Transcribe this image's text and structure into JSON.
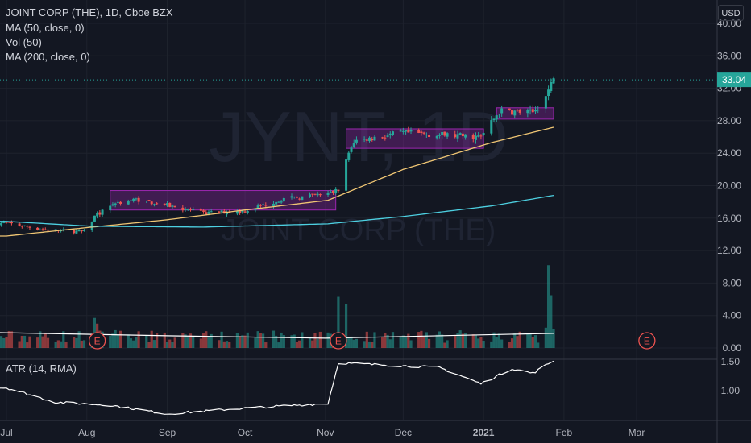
{
  "header": {
    "symbol_line": "JOINT CORP (THE), 1D, Cboe BZX",
    "ma50_label": "MA (50, close, 0)",
    "vol_label": "Vol (50)",
    "ma200_label": "MA (200, close, 0)",
    "atr_label": "ATR (14, RMA)",
    "currency": "USD"
  },
  "watermark": {
    "ticker": "JYNT, 1D",
    "name": "JOINT CORP (THE)"
  },
  "colors": {
    "up": "#26a69a",
    "down": "#ef5350",
    "ma50": "#f0c674",
    "ma200": "#4dd0e1",
    "box_border": "#9c27b0",
    "box_fill": "#9c27b055",
    "atr_line": "#ffffff",
    "vol_ma": "#ffffff",
    "last_price_bg": "#26a69a"
  },
  "earnings_marker": "E",
  "chart_data": {
    "type": "candlestick",
    "price_axis": {
      "ticks": [
        "40.00",
        "36.00",
        "32.00",
        "28.00",
        "24.00",
        "20.00",
        "16.00",
        "12.00",
        "8.00",
        "4.00",
        "0.00"
      ],
      "range": [
        0,
        41
      ]
    },
    "atr_axis": {
      "ticks": [
        "1.50",
        "1.00"
      ],
      "range": [
        0.3,
        1.6
      ]
    },
    "x_axis": {
      "labels": [
        "Jul",
        "Aug",
        "Sep",
        "Oct",
        "Nov",
        "Dec",
        "2021",
        "Feb",
        "Mar"
      ]
    },
    "last_price": "33.04",
    "close_anchors": [
      [
        "2020-07-01",
        15.4
      ],
      [
        "2020-07-15",
        14.6
      ],
      [
        "2020-07-31",
        14.3
      ],
      [
        "2020-08-04",
        16.2
      ],
      [
        "2020-08-11",
        17.8
      ],
      [
        "2020-08-20",
        18.3
      ],
      [
        "2020-09-01",
        17.6
      ],
      [
        "2020-09-15",
        16.6
      ],
      [
        "2020-10-01",
        16.9
      ],
      [
        "2020-10-15",
        18.3
      ],
      [
        "2020-11-02",
        19.0
      ],
      [
        "2020-11-06",
        19.5
      ],
      [
        "2020-11-09",
        23.0
      ],
      [
        "2020-11-12",
        25.5
      ],
      [
        "2020-12-01",
        26.5
      ],
      [
        "2020-12-31",
        26.0
      ],
      [
        "2021-01-04",
        27.8
      ],
      [
        "2021-01-07",
        29.2
      ],
      [
        "2021-01-20",
        29.0
      ],
      [
        "2021-01-25",
        31.0
      ],
      [
        "2021-01-28",
        33.04
      ]
    ],
    "ma50_anchors": [
      [
        "2020-07-01",
        13.8
      ],
      [
        "2020-08-03",
        14.9
      ],
      [
        "2020-09-01",
        15.8
      ],
      [
        "2020-10-01",
        17.0
      ],
      [
        "2020-11-02",
        18.2
      ],
      [
        "2020-12-01",
        22.0
      ],
      [
        "2021-01-04",
        25.3
      ],
      [
        "2021-01-28",
        27.2
      ]
    ],
    "ma200_anchors": [
      [
        "2020-07-01",
        15.6
      ],
      [
        "2020-08-03",
        15.0
      ],
      [
        "2020-09-15",
        14.9
      ],
      [
        "2020-11-02",
        15.3
      ],
      [
        "2020-12-01",
        16.2
      ],
      [
        "2021-01-04",
        17.5
      ],
      [
        "2021-01-28",
        18.8
      ]
    ],
    "atr_anchors": [
      [
        "2020-07-01",
        1.05
      ],
      [
        "2020-07-20",
        0.8
      ],
      [
        "2020-08-10",
        0.75
      ],
      [
        "2020-09-01",
        0.6
      ],
      [
        "2020-10-01",
        0.7
      ],
      [
        "2020-11-02",
        0.78
      ],
      [
        "2020-11-06",
        1.48
      ],
      [
        "2020-11-20",
        1.45
      ],
      [
        "2020-12-15",
        1.4
      ],
      [
        "2020-12-31",
        1.12
      ],
      [
        "2021-01-12",
        1.38
      ],
      [
        "2021-01-20",
        1.3
      ],
      [
        "2021-01-28",
        1.52
      ]
    ],
    "volume_ma": 1.5,
    "volume_spikes": [
      [
        "2020-08-04",
        3.7,
        "up"
      ],
      [
        "2020-08-05",
        3.0,
        "down"
      ],
      [
        "2020-11-06",
        6.3,
        "up"
      ],
      [
        "2020-11-09",
        5.4,
        "up"
      ],
      [
        "2021-01-25",
        2.5,
        "up"
      ],
      [
        "2021-01-26",
        10.2,
        "up"
      ],
      [
        "2021-01-27",
        6.5,
        "up"
      ],
      [
        "2021-01-28",
        2.3,
        "up"
      ]
    ],
    "consolidation_boxes": [
      {
        "from": "2020-08-10",
        "to": "2020-11-05",
        "low": 17.0,
        "high": 19.4
      },
      {
        "from": "2020-11-09",
        "to": "2021-01-01",
        "low": 24.6,
        "high": 27.0
      },
      {
        "from": "2021-01-06",
        "to": "2021-01-28",
        "low": 28.2,
        "high": 29.6
      }
    ],
    "earnings_dates": [
      "2020-08-05",
      "2020-11-06",
      "2021-03-05"
    ]
  }
}
